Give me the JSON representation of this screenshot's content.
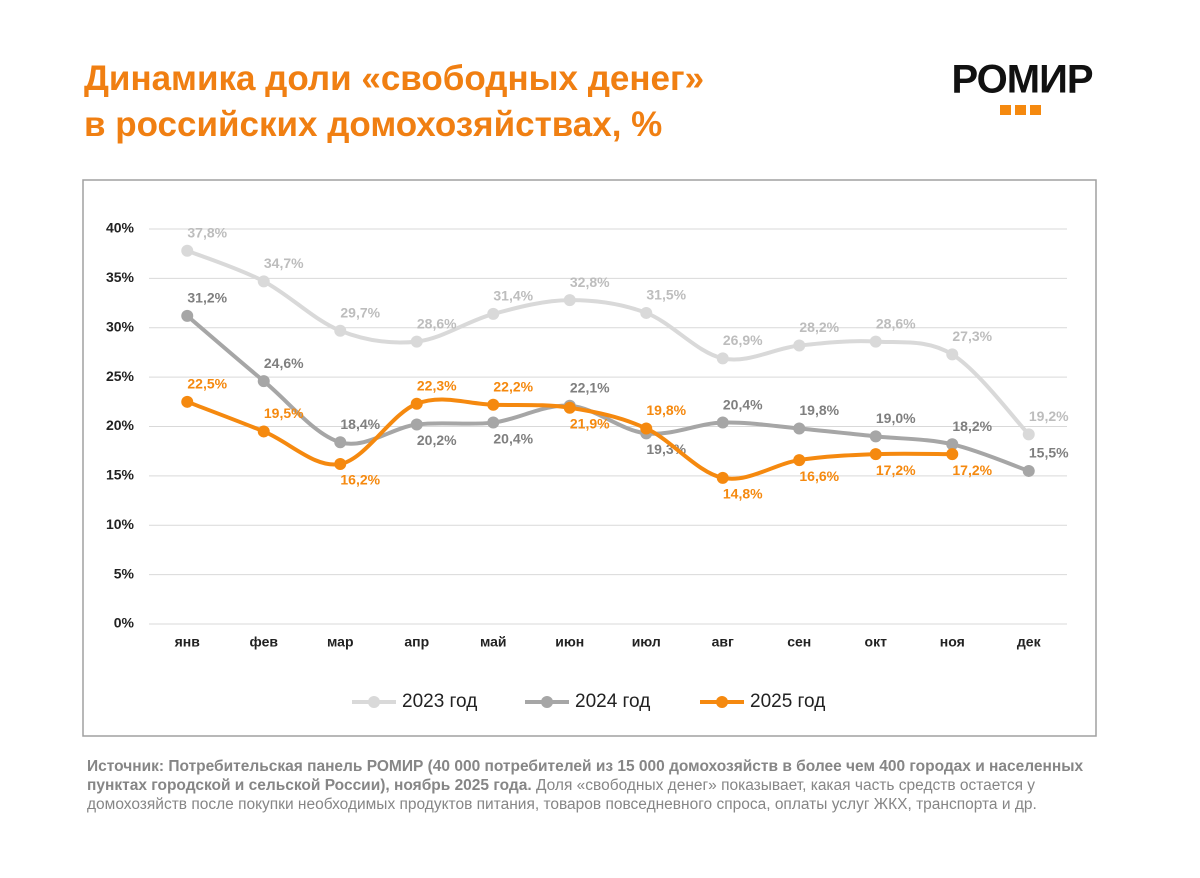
{
  "header": {
    "title": [
      "Динамика доли «свободных денег»",
      "в российских домохозяйствах, %"
    ],
    "logo": "РОМИР"
  },
  "chart_data": {
    "type": "line",
    "categories": [
      "янв",
      "фев",
      "мар",
      "апр",
      "май",
      "июн",
      "июл",
      "авг",
      "сен",
      "окт",
      "ноя",
      "дек"
    ],
    "ylim": [
      0,
      40
    ],
    "yticks": [
      {
        "value": 0,
        "label": "0%"
      },
      {
        "value": 5,
        "label": "5%"
      },
      {
        "value": 10,
        "label": "10%"
      },
      {
        "value": 15,
        "label": "15%"
      },
      {
        "value": 20,
        "label": "20%"
      },
      {
        "value": 25,
        "label": "25%"
      },
      {
        "value": 30,
        "label": "30%"
      },
      {
        "value": 35,
        "label": "35%"
      },
      {
        "value": 40,
        "label": "40%"
      }
    ],
    "grid": true,
    "legend": "bottom",
    "series": [
      {
        "name": "2023 год",
        "color": "#d9d9d9",
        "label_color": "#bdbdbd",
        "values": [
          37.8,
          34.7,
          29.7,
          28.6,
          31.4,
          32.8,
          31.5,
          26.9,
          28.2,
          28.6,
          27.3,
          19.2
        ],
        "value_labels": [
          "37,8%",
          "34,7%",
          "29,7%",
          "28,6%",
          "31,4%",
          "32,8%",
          "31,5%",
          "26,9%",
          "28,2%",
          "28,6%",
          "27,3%",
          "19,2%"
        ]
      },
      {
        "name": "2024 год",
        "color": "#a6a6a6",
        "label_color": "#7f7f7f",
        "values": [
          31.2,
          24.6,
          18.4,
          20.2,
          20.4,
          22.1,
          19.3,
          20.4,
          19.8,
          19.0,
          18.2,
          15.5
        ],
        "value_labels": [
          "31,2%",
          "24,6%",
          "18,4%",
          "20,2%",
          "20,4%",
          "22,1%",
          "19,3%",
          "20,4%",
          "19,8%",
          "19,0%",
          "18,2%",
          "15,5%"
        ]
      },
      {
        "name": "2025 год",
        "color": "#f5890f",
        "label_color": "#f5890f",
        "values": [
          22.5,
          19.5,
          16.2,
          22.3,
          22.2,
          21.9,
          19.8,
          14.8,
          16.6,
          17.2,
          17.2,
          null
        ],
        "value_labels": [
          "22,5%",
          "19,5%",
          "16,2%",
          "22,3%",
          "22,2%",
          "21,9%",
          "19,8%",
          "14,8%",
          "16,6%",
          "17,2%",
          "17,2%",
          null
        ]
      }
    ]
  },
  "source": {
    "bold": "Источник: Потребительская панель РОМИР (40 000 потребителей из 15 000 домохозяйств в более чем 400 городах и населенных пунктах городской и сельской России), ноябрь 2025 года.",
    "text": "Доля «свободных денег» показывает, какая часть средств остается у домохозяйств после покупки необходимых продуктов питания, товаров повседневного спроса, оплаты услуг ЖКХ, транспорта и др."
  }
}
